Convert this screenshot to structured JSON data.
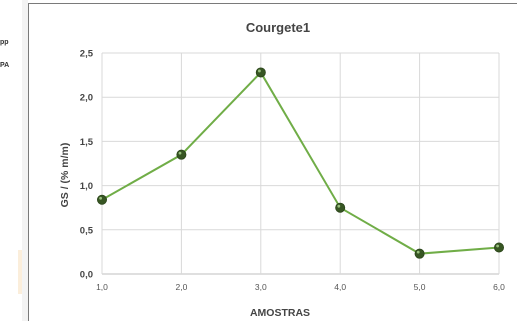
{
  "left_panel": {
    "fragment_1": "pp",
    "fragment_2": "PA"
  },
  "chart_data": {
    "type": "line",
    "title": "Courgete1",
    "xlabel": "AMOSTRAS",
    "ylabel": "GS / (% m/m)",
    "x_ticks": [
      "1,0",
      "2,0",
      "3,0",
      "4,0",
      "5,0",
      "6,0"
    ],
    "y_ticks": [
      "0,0",
      "0,5",
      "1,0",
      "1,5",
      "2,0",
      "2,5"
    ],
    "xlim": [
      1,
      6
    ],
    "ylim": [
      0,
      2.5
    ],
    "grid": true,
    "series": [
      {
        "x": [
          1,
          2,
          3,
          4,
          5,
          6
        ],
        "values": [
          0.84,
          1.35,
          2.28,
          0.75,
          0.23,
          0.3
        ],
        "line_color": "#70ad47",
        "marker_color": "#375623"
      }
    ]
  }
}
